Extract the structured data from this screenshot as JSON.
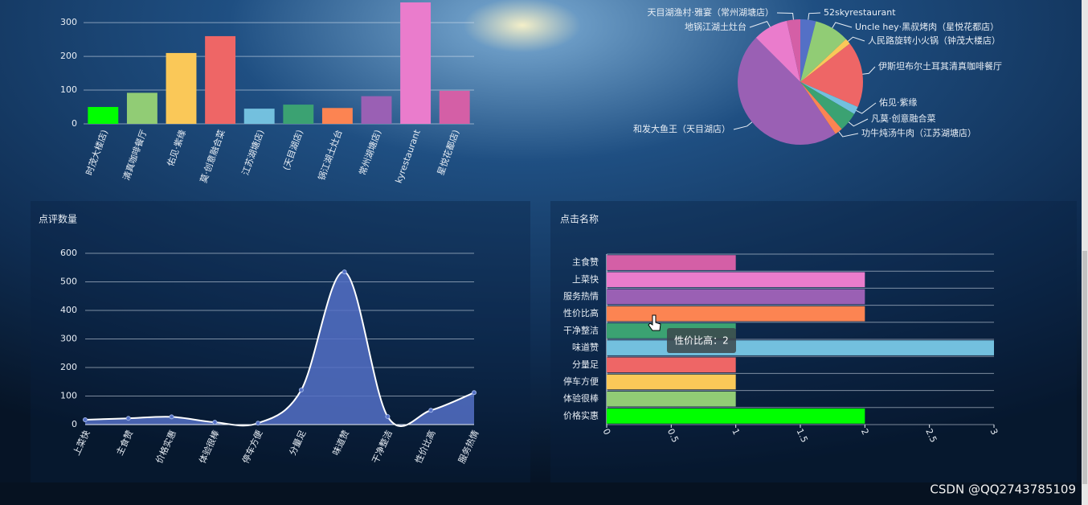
{
  "chart_data": [
    {
      "type": "bar",
      "categories": [
        "时茂大楼店)",
        "清真咖啡餐厅",
        "佑见·紫缘",
        "莫·创意融合菜",
        "江苏湖塘店)",
        "(天目湖店)",
        "锅江湖土灶台",
        "常州湖塘店)",
        "kyrestaurant",
        "星悦花都店)"
      ],
      "values": [
        50,
        92,
        210,
        260,
        45,
        57,
        47,
        82,
        360,
        98
      ],
      "colors": [
        "#00ff00",
        "#91cc75",
        "#fac858",
        "#ee6666",
        "#73c0de",
        "#3ba272",
        "#fc8452",
        "#9a60b4",
        "#ea7ccc",
        "#d45fa6"
      ],
      "ylim": [
        0,
        360
      ],
      "yticks": [
        0,
        100,
        200,
        300
      ],
      "grid": true
    },
    {
      "type": "pie",
      "categories": [
        "52skyrestaurant",
        "Uncle hey·黑叔烤肉（星悦花都店）",
        "人民路旋转小火锅（钟茂大楼店）",
        "伊斯坦布尔土耳其清真咖啡餐厅",
        "佑见·紫缘",
        "凡莫·创意融合菜",
        "功牛炖汤牛肉（江苏湖塘店）",
        "和发大鱼王（天目湖店）",
        "地锅江湖土灶台",
        "天目湖渔村·雅宴（常州湖塘店）"
      ],
      "values": [
        4,
        9,
        1.5,
        17,
        2,
        5,
        2,
        47,
        9,
        3.5
      ],
      "colors": [
        "#5470c6",
        "#91cc75",
        "#fac858",
        "#ee6666",
        "#73c0de",
        "#3ba272",
        "#fc8452",
        "#9a60b4",
        "#ea7ccc",
        "#d45fa6"
      ]
    },
    {
      "type": "line",
      "title": "点评数量",
      "categories": [
        "上菜快",
        "主食赞",
        "价格实惠",
        "体验很棒",
        "停车方便",
        "分量足",
        "味道赞",
        "干净整洁",
        "性价比高",
        "服务热情"
      ],
      "values": [
        17,
        22,
        27,
        8,
        5,
        121,
        535,
        28,
        50,
        112
      ],
      "color": "#5470c6",
      "ylim": [
        0,
        600
      ],
      "yticks": [
        0,
        100,
        200,
        300,
        400,
        500,
        600
      ],
      "grid": true,
      "smooth": true,
      "area": true
    },
    {
      "type": "hbar",
      "title": "点击名称",
      "categories": [
        "价格实惠",
        "体验很棒",
        "停车方便",
        "分量足",
        "味道赞",
        "干净整洁",
        "性价比高",
        "服务热情",
        "上菜快",
        "主食赞"
      ],
      "values": [
        2,
        1,
        1,
        1,
        3,
        1,
        2,
        2,
        2,
        1
      ],
      "colors": [
        "#00ff00",
        "#91cc75",
        "#fac858",
        "#ee6666",
        "#73c0de",
        "#3ba272",
        "#fc8452",
        "#9a60b4",
        "#ea7ccc",
        "#d45fa6"
      ],
      "xlim": [
        0,
        3
      ],
      "xticks": [
        0,
        0.5,
        1,
        1.5,
        2,
        2.5,
        3
      ]
    }
  ],
  "tooltip": "性价比高：2",
  "watermark": "CSDN @QQ2743785109"
}
